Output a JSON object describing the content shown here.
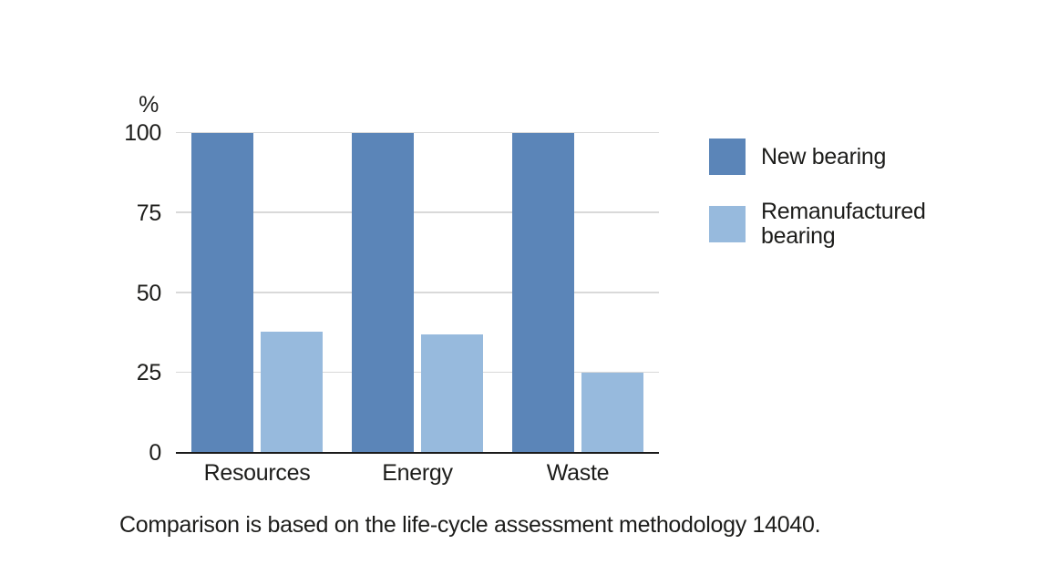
{
  "chart_data": {
    "type": "bar",
    "title": "",
    "ylabel": "%",
    "xlabel": "",
    "categories": [
      "Resources",
      "Energy",
      "Waste"
    ],
    "series": [
      {
        "name": "New bearing",
        "color": "#5B85B8",
        "values": [
          100,
          100,
          100
        ]
      },
      {
        "name": "Remanufactured bearing",
        "color": "#97BADD",
        "values": [
          38,
          37,
          25
        ]
      }
    ],
    "ylim": [
      0,
      100
    ],
    "y_ticks": [
      0,
      25,
      50,
      75,
      100
    ],
    "grid": true,
    "legend_position": "right"
  },
  "caption": "Comparison is based on the life-cycle assessment methodology 14040.",
  "colors": {
    "grid": "#D9D9D9",
    "axis": "#1A1A1A",
    "text": "#1D1D1B",
    "background": "#FFFFFF"
  }
}
